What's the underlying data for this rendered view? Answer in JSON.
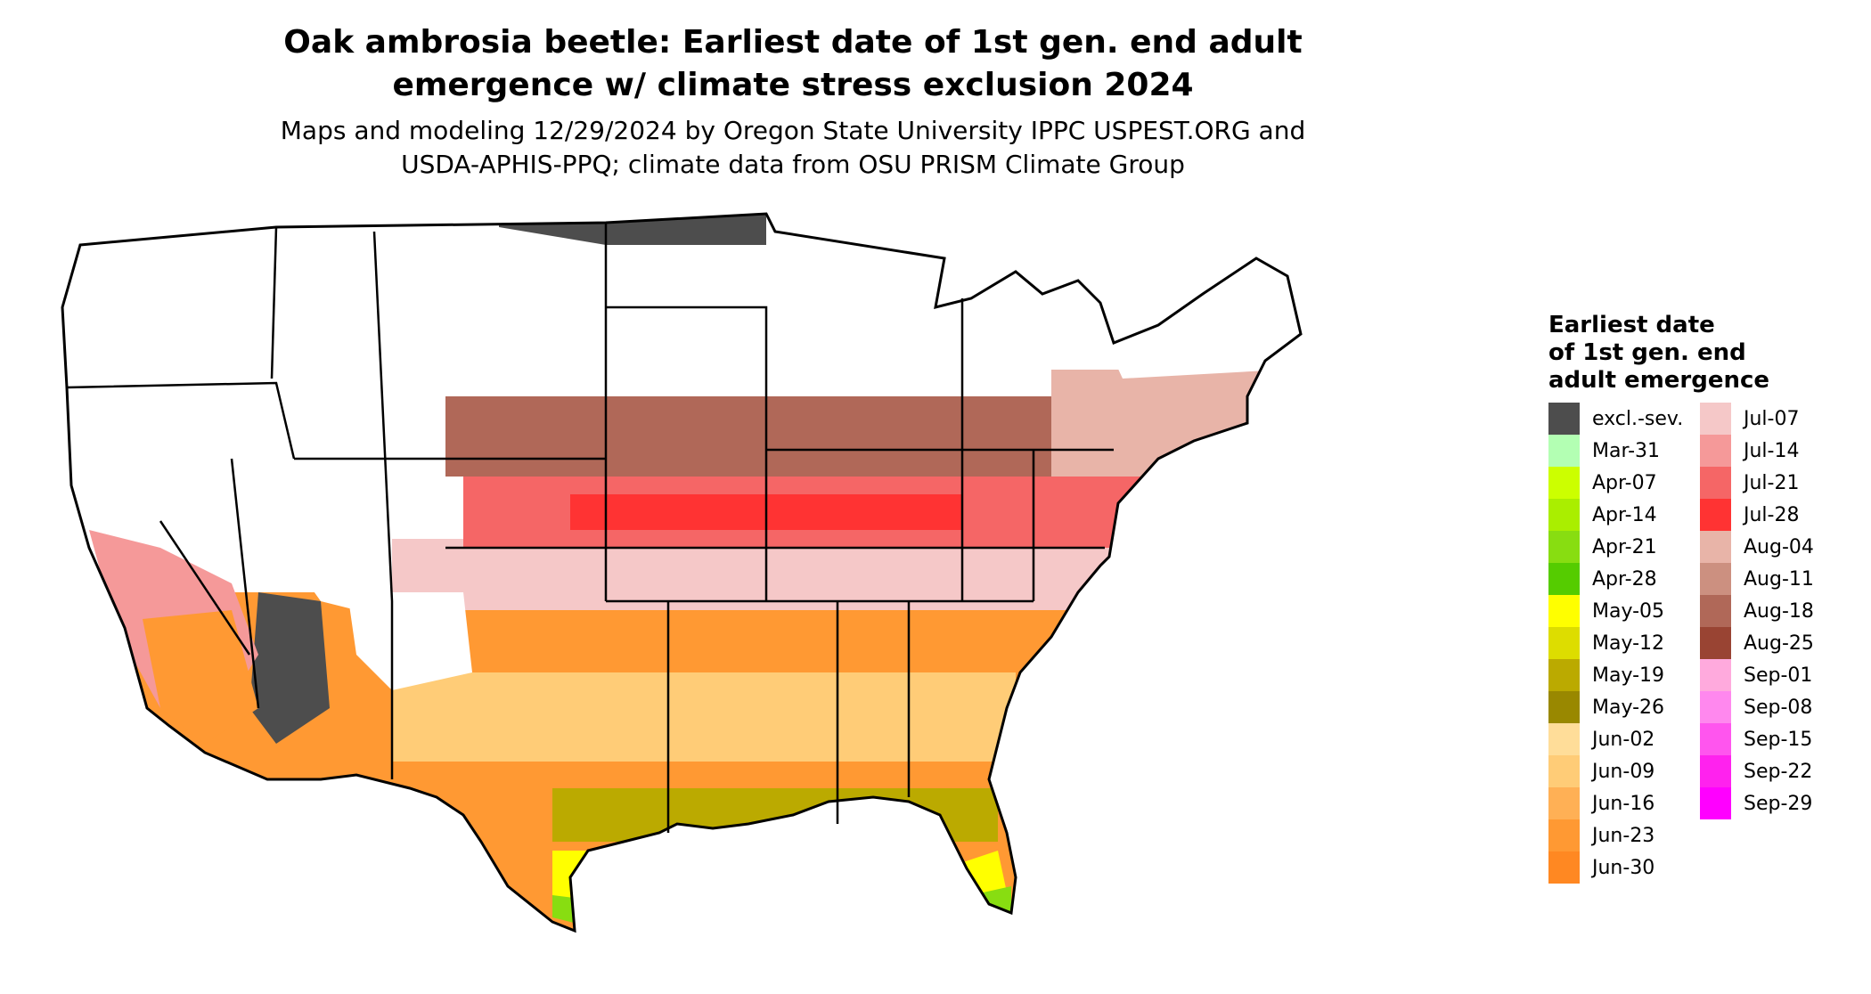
{
  "title": {
    "line1": "Oak ambrosia beetle: Earliest date of 1st gen. end adult",
    "line2": "emergence w/ climate stress exclusion 2024"
  },
  "subtitle": {
    "line1": "Maps and modeling 12/29/2024 by Oregon State University IPPC USPEST.ORG and",
    "line2": "USDA-APHIS-PPQ; climate data from OSU PRISM Climate Group"
  },
  "legend": {
    "title_lines": [
      "Earliest date",
      "of 1st gen. end",
      "adult emergence"
    ],
    "column1": [
      {
        "label": "excl.-sev.",
        "color": "#4d4d4d"
      },
      {
        "label": "Mar-31",
        "color": "#b3ffb3"
      },
      {
        "label": "Apr-07",
        "color": "#ccff00"
      },
      {
        "label": "Apr-14",
        "color": "#aaee00"
      },
      {
        "label": "Apr-21",
        "color": "#88dd11"
      },
      {
        "label": "Apr-28",
        "color": "#55cc00"
      },
      {
        "label": "May-05",
        "color": "#ffff00"
      },
      {
        "label": "May-12",
        "color": "#dddd00"
      },
      {
        "label": "May-19",
        "color": "#bbaa00"
      },
      {
        "label": "May-26",
        "color": "#998800"
      },
      {
        "label": "Jun-02",
        "color": "#ffdd99"
      },
      {
        "label": "Jun-09",
        "color": "#ffcc77"
      },
      {
        "label": "Jun-16",
        "color": "#ffb055"
      },
      {
        "label": "Jun-23",
        "color": "#ff9933"
      },
      {
        "label": "Jun-30",
        "color": "#ff8822"
      }
    ],
    "column2": [
      {
        "label": "Jul-07",
        "color": "#f5c8c8"
      },
      {
        "label": "Jul-14",
        "color": "#f59999"
      },
      {
        "label": "Jul-21",
        "color": "#f56666"
      },
      {
        "label": "Jul-28",
        "color": "#ff3333"
      },
      {
        "label": "Aug-04",
        "color": "#e8b4a8"
      },
      {
        "label": "Aug-11",
        "color": "#cc9080"
      },
      {
        "label": "Aug-18",
        "color": "#b06858"
      },
      {
        "label": "Aug-25",
        "color": "#994433"
      },
      {
        "label": "Sep-01",
        "color": "#ffaadd"
      },
      {
        "label": "Sep-08",
        "color": "#ff88ee"
      },
      {
        "label": "Sep-15",
        "color": "#ff55ee"
      },
      {
        "label": "Sep-22",
        "color": "#ff22ee"
      },
      {
        "label": "Sep-29",
        "color": "#ff00ff"
      }
    ]
  }
}
